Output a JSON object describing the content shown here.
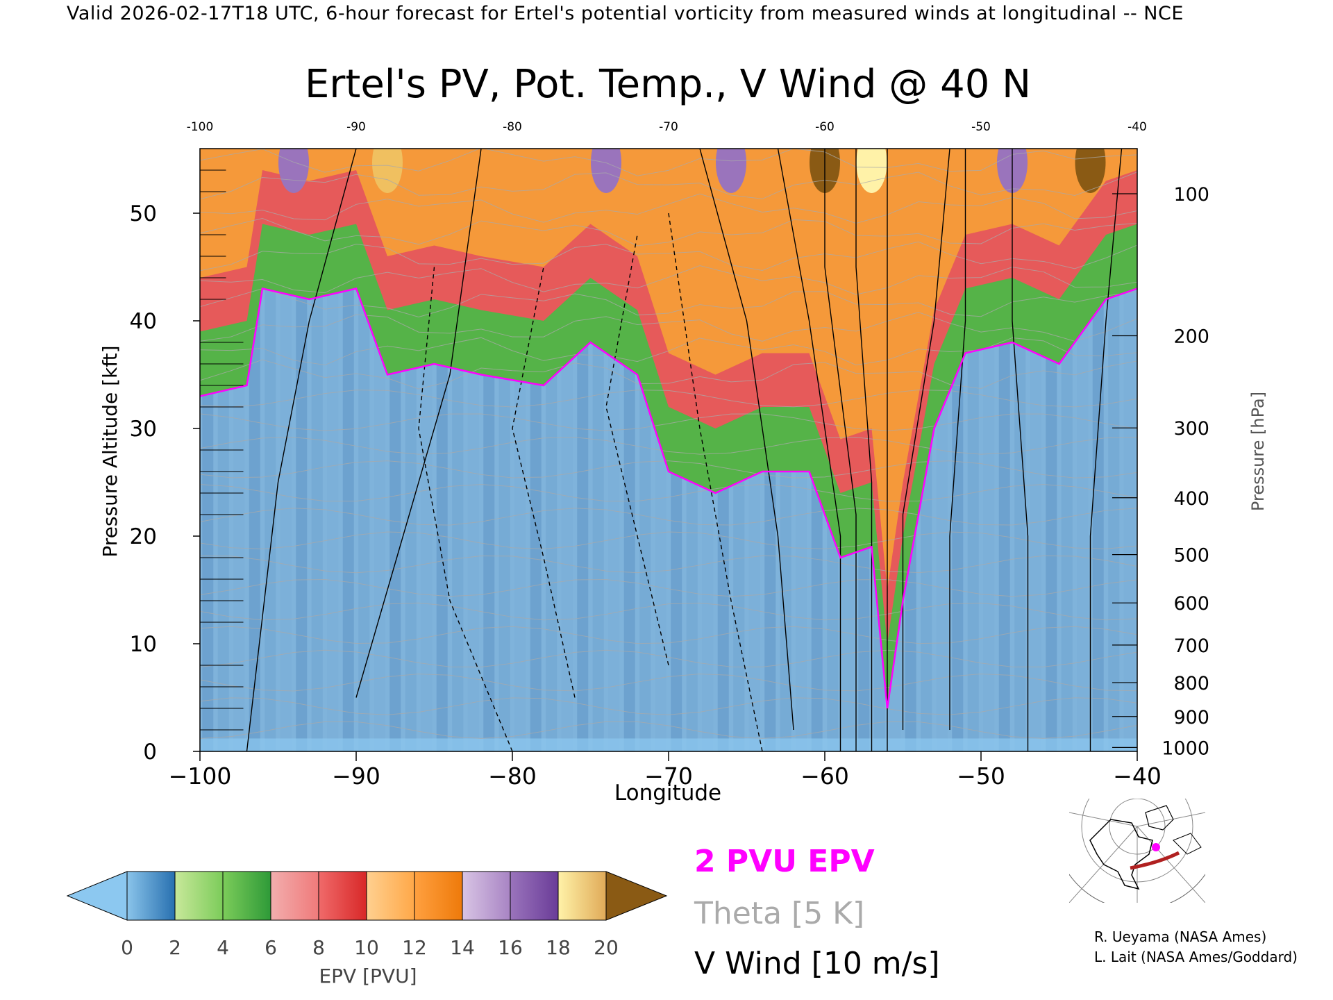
{
  "header": {
    "validity_line": "Valid 2026-02-17T18 UTC, 6-hour forecast for Ertel's potential vorticity from measured winds at longitudinal -- NCE"
  },
  "chart_data": {
    "type": "heatmap",
    "title": "Ertel's PV, Pot. Temp., V Wind @ 40 N",
    "xlabel": "Longitude",
    "ylabel_left": "Pressure Altitude [kft]",
    "ylabel_right": "Pressure [hPa]",
    "xlim": [
      -100,
      -40
    ],
    "ylim": [
      0,
      56
    ],
    "x_ticks": [
      -100,
      -90,
      -80,
      -70,
      -60,
      -50,
      -40
    ],
    "x_tick_labels": [
      "−100",
      "−90",
      "−80",
      "−70",
      "−60",
      "−50",
      "−40"
    ],
    "x_tick_labels_top": [
      "-100",
      "-90",
      "-80",
      "-70",
      "-60",
      "-50",
      "-40"
    ],
    "y_ticks_kft": [
      0,
      10,
      20,
      30,
      40,
      50
    ],
    "pressure_ticks_hpa": [
      1000,
      900,
      800,
      700,
      600,
      500,
      400,
      300,
      200,
      100
    ],
    "colorbar": {
      "label": "EPV [PVU]",
      "ticks": [
        0,
        2,
        4,
        6,
        8,
        10,
        12,
        14,
        16,
        18,
        20
      ],
      "under_color": "#8cc8f0",
      "over_color": "#8a5a14",
      "bins": [
        {
          "range": [
            0,
            2
          ],
          "colors": [
            "#8ac4ea",
            "#2870b0"
          ]
        },
        {
          "range": [
            2,
            4
          ],
          "colors": [
            "#c8e89a",
            "#7ccc5a"
          ]
        },
        {
          "range": [
            4,
            6
          ],
          "colors": [
            "#7ccc5a",
            "#2e9a38"
          ]
        },
        {
          "range": [
            6,
            8
          ],
          "colors": [
            "#f2aeae",
            "#f07a7a"
          ]
        },
        {
          "range": [
            8,
            10
          ],
          "colors": [
            "#f06a6a",
            "#d82828"
          ]
        },
        {
          "range": [
            10,
            12
          ],
          "colors": [
            "#ffd090",
            "#ffa848"
          ]
        },
        {
          "range": [
            12,
            14
          ],
          "colors": [
            "#ffa040",
            "#ee7a0a"
          ]
        },
        {
          "range": [
            14,
            16
          ],
          "colors": [
            "#d8c4e4",
            "#a884c4"
          ]
        },
        {
          "range": [
            16,
            18
          ],
          "colors": [
            "#9a74bc",
            "#6a3c98"
          ]
        },
        {
          "range": [
            18,
            20
          ],
          "colors": [
            "#fff2a8",
            "#e0aa58"
          ]
        }
      ]
    },
    "pv_2pvu_boundary": [
      {
        "lon": -100,
        "kft": 33
      },
      {
        "lon": -97,
        "kft": 34
      },
      {
        "lon": -96,
        "kft": 43
      },
      {
        "lon": -93,
        "kft": 42
      },
      {
        "lon": -90,
        "kft": 43
      },
      {
        "lon": -88,
        "kft": 35
      },
      {
        "lon": -85,
        "kft": 36
      },
      {
        "lon": -82,
        "kft": 35
      },
      {
        "lon": -78,
        "kft": 34
      },
      {
        "lon": -75,
        "kft": 38
      },
      {
        "lon": -72,
        "kft": 35
      },
      {
        "lon": -70,
        "kft": 26
      },
      {
        "lon": -67,
        "kft": 24
      },
      {
        "lon": -64,
        "kft": 26
      },
      {
        "lon": -61,
        "kft": 26
      },
      {
        "lon": -59,
        "kft": 18
      },
      {
        "lon": -57,
        "kft": 19
      },
      {
        "lon": -56,
        "kft": 4
      },
      {
        "lon": -55,
        "kft": 14
      },
      {
        "lon": -53,
        "kft": 30
      },
      {
        "lon": -51,
        "kft": 37
      },
      {
        "lon": -48,
        "kft": 38
      },
      {
        "lon": -45,
        "kft": 36
      },
      {
        "lon": -42,
        "kft": 42
      },
      {
        "lon": -40,
        "kft": 43
      }
    ],
    "legend": {
      "pv_line": "2 PVU EPV",
      "theta": "Theta [5 K]",
      "vwind": "V Wind [10 m/s]"
    },
    "colors": {
      "pv_line": "#ff00ff",
      "theta": "#aaaaaa",
      "vwind": "#000000"
    }
  },
  "inset_map": {
    "description_icon": "north-america-polar-map-icon",
    "track_color": "#b02020",
    "marker_color": "#ff00ff"
  },
  "credits": {
    "line1": "R. Ueyama (NASA Ames)",
    "line2": "L. Lait (NASA Ames/Goddard)"
  }
}
